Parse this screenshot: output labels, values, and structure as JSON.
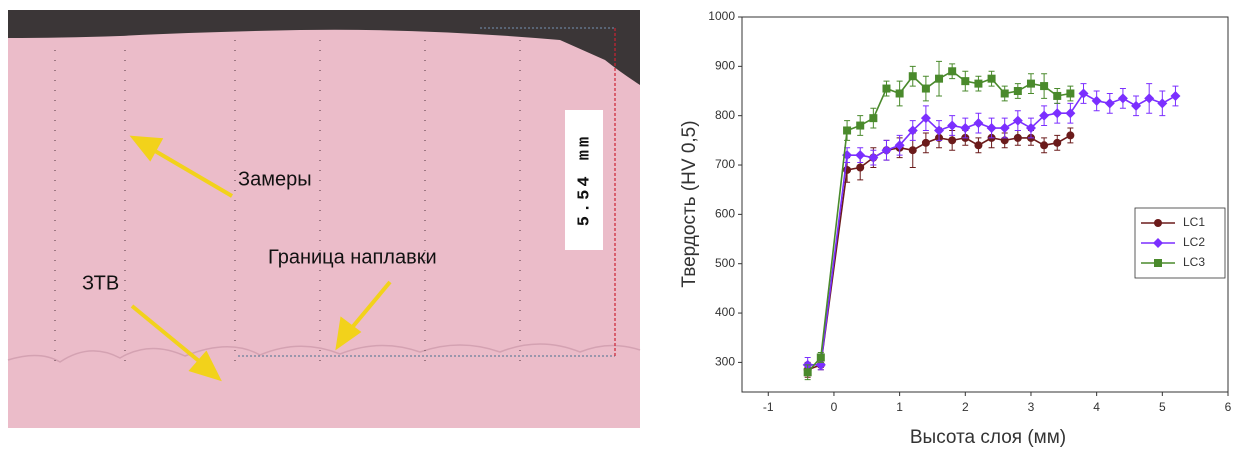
{
  "micrograph": {
    "measurements": "Замеры",
    "haz": "ЗТВ",
    "fusion_boundary": "Граница наплавки",
    "scale": "5.54 mm"
  },
  "chart_data": {
    "type": "line",
    "x_label": "Высота слоя (мм)",
    "y_label": "Твердость (HV 0,5)",
    "xlim": [
      -1.4,
      6
    ],
    "xticks": [
      -1,
      0,
      1,
      2,
      3,
      4,
      5,
      6
    ],
    "ylim": [
      240,
      1000
    ],
    "yticks": [
      300,
      400,
      500,
      600,
      700,
      800,
      900,
      1000
    ],
    "legend": "right",
    "series": [
      {
        "name": "LC1",
        "color": "#6b1b1b",
        "marker": "circle",
        "x": [
          -0.4,
          -0.2,
          0.2,
          0.4,
          0.6,
          0.8,
          1.0,
          1.2,
          1.4,
          1.6,
          1.8,
          2.0,
          2.2,
          2.4,
          2.6,
          2.8,
          3.0,
          3.2,
          3.4,
          3.6
        ],
        "values": [
          285,
          295,
          690,
          695,
          715,
          730,
          735,
          730,
          745,
          755,
          750,
          755,
          740,
          755,
          750,
          755,
          755,
          740,
          745,
          760
        ],
        "errors": [
          15,
          10,
          25,
          25,
          20,
          20,
          20,
          35,
          20,
          20,
          20,
          15,
          15,
          20,
          15,
          15,
          15,
          15,
          15,
          15
        ]
      },
      {
        "name": "LC2",
        "color": "#7b2fff",
        "marker": "diamond",
        "x": [
          -0.4,
          -0.2,
          0.2,
          0.4,
          0.6,
          0.8,
          1.0,
          1.2,
          1.4,
          1.6,
          1.8,
          2.0,
          2.2,
          2.4,
          2.6,
          2.8,
          3.0,
          3.2,
          3.4,
          3.6,
          3.8,
          4.0,
          4.2,
          4.4,
          4.6,
          4.8,
          5.0,
          5.2
        ],
        "values": [
          295,
          295,
          720,
          720,
          715,
          730,
          740,
          770,
          795,
          770,
          780,
          775,
          785,
          775,
          775,
          790,
          775,
          800,
          805,
          805,
          845,
          830,
          825,
          835,
          820,
          835,
          825,
          840
        ],
        "errors": [
          15,
          10,
          15,
          15,
          15,
          20,
          20,
          20,
          25,
          20,
          20,
          20,
          20,
          20,
          20,
          20,
          20,
          20,
          20,
          20,
          20,
          20,
          20,
          20,
          20,
          30,
          25,
          20
        ]
      },
      {
        "name": "LC3",
        "color": "#4a8a2c",
        "marker": "square",
        "x": [
          -0.4,
          -0.2,
          0.2,
          0.4,
          0.6,
          0.8,
          1.0,
          1.2,
          1.4,
          1.6,
          1.8,
          2.0,
          2.2,
          2.4,
          2.6,
          2.8,
          3.0,
          3.2,
          3.4,
          3.6
        ],
        "values": [
          280,
          310,
          770,
          780,
          795,
          855,
          845,
          880,
          855,
          875,
          890,
          870,
          865,
          875,
          845,
          850,
          865,
          860,
          840,
          845
        ],
        "errors": [
          15,
          10,
          20,
          20,
          20,
          15,
          25,
          20,
          25,
          35,
          15,
          20,
          15,
          15,
          15,
          15,
          20,
          25,
          15,
          15
        ]
      }
    ]
  }
}
